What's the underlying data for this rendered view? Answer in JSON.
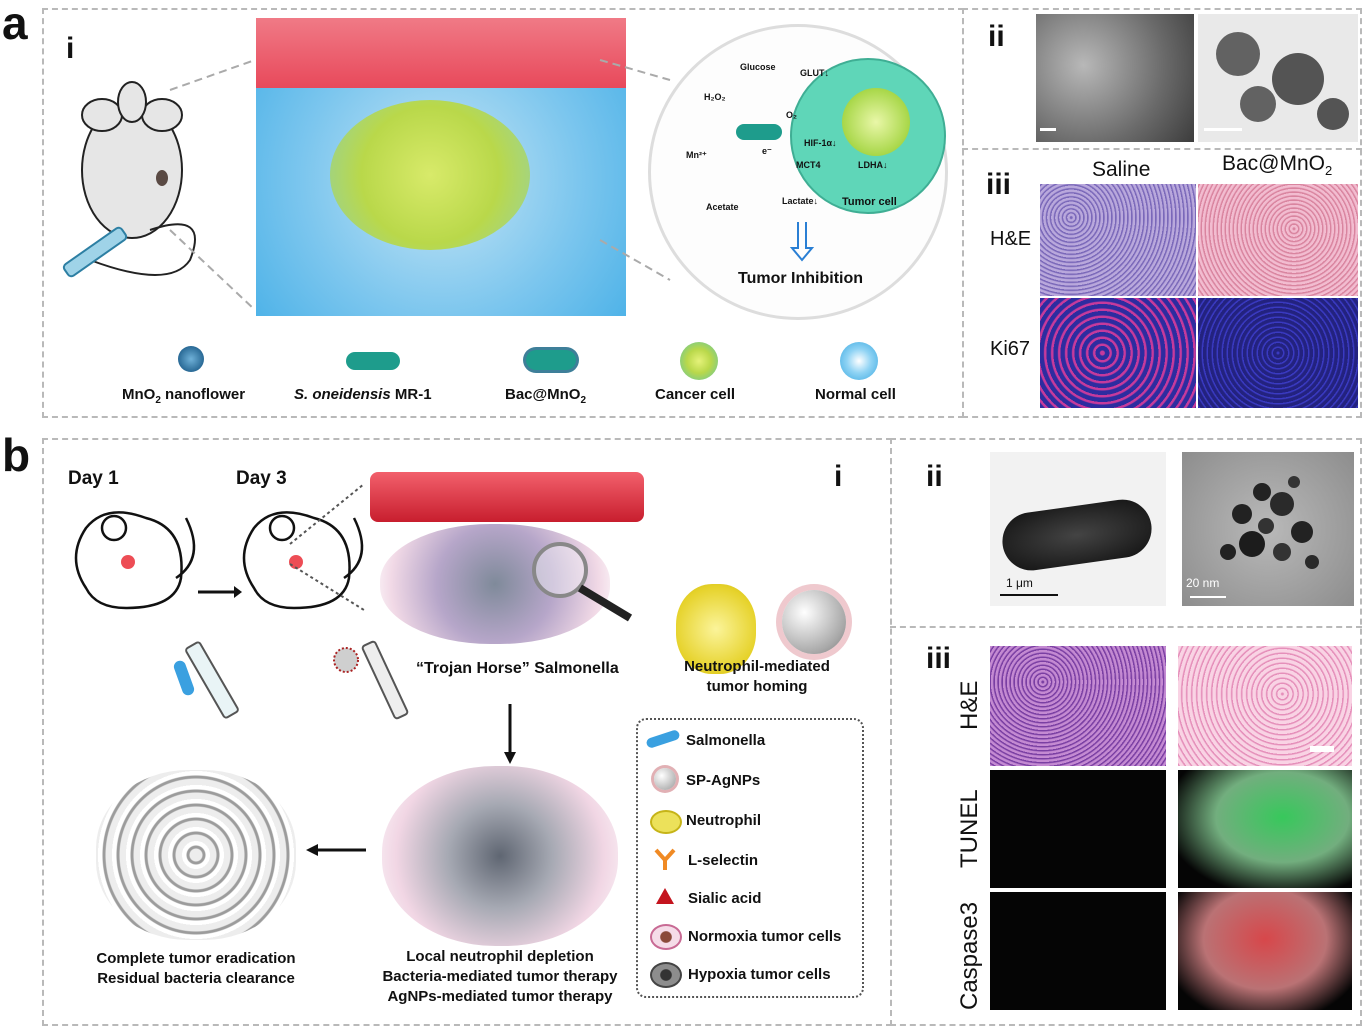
{
  "panel_a": {
    "letter": "a",
    "sub_i": "i",
    "sub_ii": "ii",
    "sub_iii": "iii",
    "mechanism": {
      "glucose": "Glucose",
      "glut": "GLUT↓",
      "h2o2": "H₂O₂",
      "o2": "O₂",
      "hif": "HIF-1α↓",
      "mn": "Mn²⁺",
      "electron": "e⁻",
      "mct4": "MCT4",
      "ldha": "LDHA↓",
      "acetate": "Acetate",
      "lactate": "Lactate↓",
      "tumor_cell": "Tumor cell",
      "outcome": "Tumor Inhibition"
    },
    "legend": {
      "mno2_pre": "MnO",
      "mno2_sub": "2",
      "mno2_post": " nanoflower",
      "bacteria_italic": "S. oneidensis",
      "bacteria_rest": " MR-1",
      "bac_pre": "Bac@MnO",
      "bac_sub": "2",
      "cancer": "Cancer cell",
      "normal": "Normal cell"
    },
    "histology": {
      "col1": "Saline",
      "col2_pre": "Bac@MnO",
      "col2_sub": "2",
      "row1": "H&E",
      "row2": "Ki67"
    }
  },
  "panel_b": {
    "letter": "b",
    "sub_i": "i",
    "sub_ii": "ii",
    "sub_iii": "iii",
    "day1": "Day 1",
    "day3": "Day 3",
    "trojan": "“Trojan Horse” Salmonella",
    "homing_1": "Neutrophil-mediated",
    "homing_2": "tumor homing",
    "therapy_1": "Local neutrophil depletion",
    "therapy_2": "Bacteria-mediated tumor therapy",
    "therapy_3": "AgNPs-mediated tumor therapy",
    "eradication_1": "Complete tumor eradication",
    "eradication_2": "Residual bacteria clearance",
    "legend": [
      "Salmonella",
      "SP-AgNPs",
      "Neutrophil",
      "L-selectin",
      "Sialic acid",
      "Normoxia tumor cells",
      "Hypoxia tumor cells"
    ],
    "scale_1": "1 μm",
    "scale_2": "20 nm",
    "histology_rows": [
      "H&E",
      "TUNEL",
      "Caspase3"
    ]
  },
  "colors": {
    "vessel": "#e8495b",
    "normal_cell": "#4fb3e8",
    "cancer_cell": "#b9d84a",
    "tumor_cell": "#5fd6b8",
    "bacteria": "#1e9c8c",
    "he_saline": "#9a86c9",
    "he_treated": "#e9a9c6",
    "tunel": "#22c24a",
    "caspase": "#d0272b",
    "ki67_bg": "#2d2ca0"
  }
}
